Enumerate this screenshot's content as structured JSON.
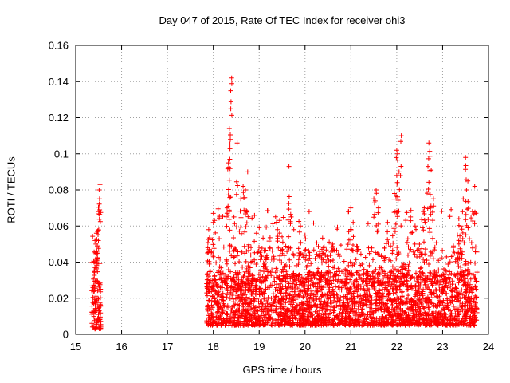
{
  "chart_data": {
    "type": "scatter",
    "title": "Day 047 of 2015, Rate Of TEC Index for receiver ohi3",
    "xlabel": "GPS time / hours",
    "ylabel": "ROTI / TECUs",
    "xlim": [
      15,
      24
    ],
    "ylim": [
      0,
      0.16
    ],
    "x_ticks": [
      "15",
      "16",
      "17",
      "18",
      "19",
      "20",
      "21",
      "22",
      "23",
      "24"
    ],
    "y_ticks": [
      "0",
      "0.02",
      "0.04",
      "0.06",
      "0.08",
      "0.1",
      "0.12",
      "0.14",
      "0.16"
    ],
    "grid": true,
    "marker": "+",
    "marker_color": "#ff0000",
    "segments": [
      {
        "x_start": 15.35,
        "x_end": 15.55,
        "typical_range": [
          0.003,
          0.03
        ],
        "spikes": [
          [
            15.42,
            0.052
          ],
          [
            15.45,
            0.056
          ],
          [
            15.48,
            0.045
          ],
          [
            15.5,
            0.068
          ],
          [
            15.52,
            0.075
          ],
          [
            15.53,
            0.083
          ],
          [
            15.51,
            0.08
          ],
          [
            15.47,
            0.057
          ],
          [
            15.44,
            0.05
          ],
          [
            15.4,
            0.04
          ]
        ]
      },
      {
        "x_start": 17.85,
        "x_end": 23.75,
        "typical_range": [
          0.005,
          0.035
        ],
        "spikes": [
          [
            18.4,
            0.142
          ],
          [
            18.38,
            0.135
          ],
          [
            18.35,
            0.114
          ],
          [
            18.37,
            0.108
          ],
          [
            18.52,
            0.106
          ],
          [
            18.36,
            0.097
          ],
          [
            18.33,
            0.095
          ],
          [
            18.75,
            0.09
          ],
          [
            18.65,
            0.082
          ],
          [
            18.7,
            0.08
          ],
          [
            18.6,
            0.075
          ],
          [
            18.3,
            0.07
          ],
          [
            18.35,
            0.068
          ],
          [
            18.45,
            0.065
          ],
          [
            18.0,
            0.062
          ],
          [
            17.9,
            0.058
          ],
          [
            19.65,
            0.093
          ],
          [
            19.7,
            0.065
          ],
          [
            19.9,
            0.06
          ],
          [
            19.4,
            0.058
          ],
          [
            20.0,
            0.055
          ],
          [
            19.5,
            0.054
          ],
          [
            20.6,
            0.05
          ],
          [
            20.4,
            0.048
          ],
          [
            21.0,
            0.07
          ],
          [
            20.95,
            0.068
          ],
          [
            21.05,
            0.062
          ],
          [
            21.55,
            0.08
          ],
          [
            21.5,
            0.075
          ],
          [
            21.6,
            0.07
          ],
          [
            21.8,
            0.062
          ],
          [
            22.0,
            0.102
          ],
          [
            22.02,
            0.1
          ],
          [
            22.05,
            0.09
          ],
          [
            22.1,
            0.11
          ],
          [
            22.0,
            0.088
          ],
          [
            21.95,
            0.078
          ],
          [
            22.3,
            0.065
          ],
          [
            22.4,
            0.06
          ],
          [
            22.7,
            0.106
          ],
          [
            22.72,
            0.101
          ],
          [
            22.68,
            0.093
          ],
          [
            22.75,
            0.091
          ],
          [
            22.8,
            0.075
          ],
          [
            22.6,
            0.07
          ],
          [
            23.5,
            0.098
          ],
          [
            23.55,
            0.085
          ],
          [
            23.52,
            0.08
          ],
          [
            23.45,
            0.075
          ],
          [
            23.7,
            0.082
          ],
          [
            23.65,
            0.068
          ],
          [
            23.4,
            0.06
          ],
          [
            23.35,
            0.052
          ]
        ]
      }
    ]
  }
}
